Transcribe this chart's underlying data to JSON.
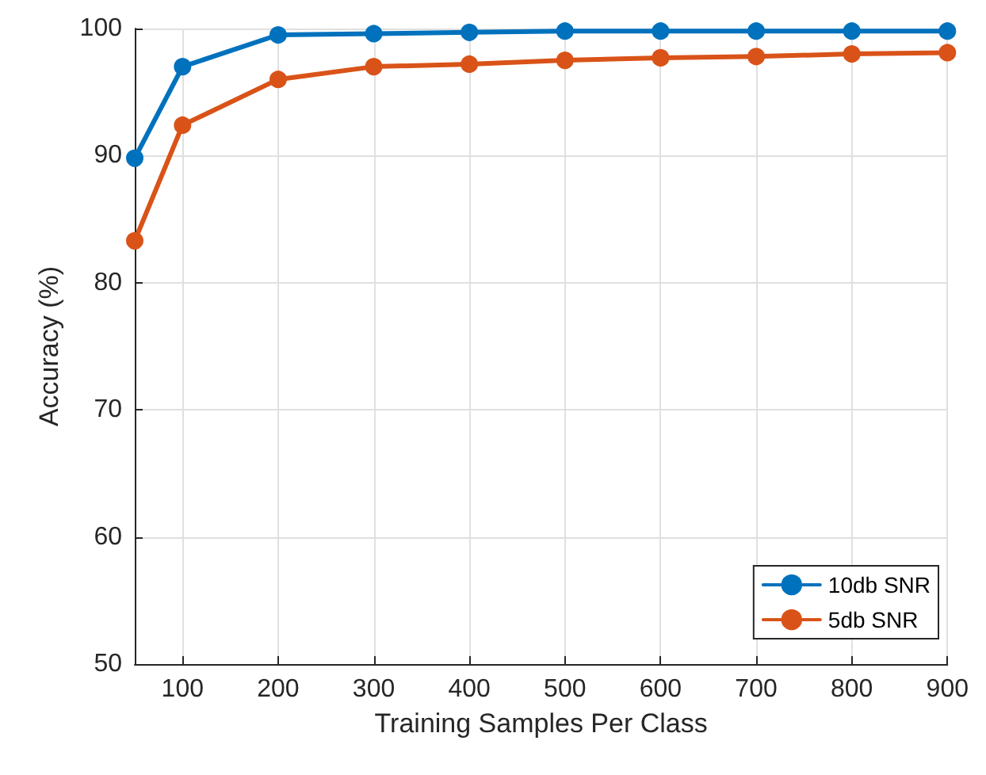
{
  "chart_data": {
    "type": "line",
    "xlabel": "Training Samples Per Class",
    "ylabel": "Accuracy (%)",
    "x": [
      50,
      100,
      200,
      300,
      400,
      500,
      600,
      700,
      800,
      900
    ],
    "series": [
      {
        "name": "10db SNR",
        "color": "#0072bd",
        "values": [
          89.8,
          97,
          99.5,
          99.6,
          99.7,
          99.8,
          99.8,
          99.8,
          99.8,
          99.8
        ]
      },
      {
        "name": "5db SNR",
        "color": "#d95319",
        "values": [
          83.3,
          92.4,
          96,
          97,
          97.2,
          97.5,
          97.7,
          97.8,
          98,
          98.1
        ]
      }
    ],
    "xlim": [
      50,
      900
    ],
    "xticks": [
      100,
      200,
      300,
      400,
      500,
      600,
      700,
      800,
      900
    ],
    "ylim": [
      50,
      100
    ],
    "yticks": [
      50,
      60,
      70,
      80,
      90,
      100
    ],
    "grid": true,
    "legend": "bottom right",
    "marker": "circle",
    "line_style": "solid"
  }
}
